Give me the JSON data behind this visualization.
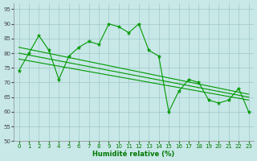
{
  "background_color": "#c8e8e8",
  "grid_color": "#a0c8c8",
  "line_color": "#009900",
  "xlabel": "Humidité relative (%)",
  "ylim": [
    50,
    97
  ],
  "xlim": [
    -0.5,
    23.5
  ],
  "yticks": [
    50,
    55,
    60,
    65,
    70,
    75,
    80,
    85,
    90,
    95
  ],
  "xticks": [
    0,
    1,
    2,
    3,
    4,
    5,
    6,
    7,
    8,
    9,
    10,
    11,
    12,
    13,
    14,
    15,
    16,
    17,
    18,
    19,
    20,
    21,
    22,
    23
  ],
  "main_series": [
    74,
    80,
    86,
    81,
    71,
    79,
    82,
    84,
    83,
    90,
    89,
    87,
    90,
    81,
    79,
    60,
    67,
    71,
    70,
    64,
    63,
    64,
    68,
    60
  ],
  "trend_lines": [
    {
      "x0": 0,
      "y0": 82,
      "x1": 23,
      "y1": 66
    },
    {
      "x0": 0,
      "y0": 80,
      "x1": 23,
      "y1": 65
    },
    {
      "x0": 0,
      "y0": 78,
      "x1": 23,
      "y1": 64
    }
  ],
  "xlabel_color": "#007700",
  "xlabel_fontsize": 6,
  "tick_fontsize": 5
}
